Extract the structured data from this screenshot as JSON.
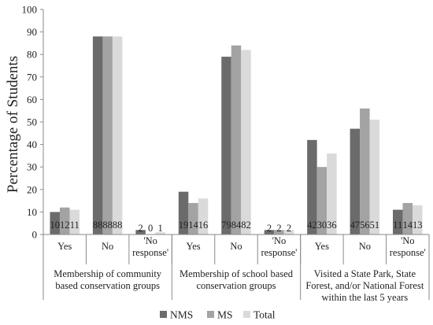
{
  "chart_data": {
    "type": "bar",
    "ylabel": "Percentage of Students",
    "ylim": [
      0,
      100
    ],
    "yticks": [
      0,
      10,
      20,
      30,
      40,
      50,
      60,
      70,
      80,
      90,
      100
    ],
    "grid": false,
    "legend_position": "bottom",
    "categories": [
      "Yes",
      "No",
      "'No response'",
      "Yes",
      "No",
      "'No response'",
      "Yes",
      "No",
      "'No response'"
    ],
    "category_lines": [
      [
        "Yes"
      ],
      [
        "No"
      ],
      [
        "'No",
        "response'"
      ],
      [
        "Yes"
      ],
      [
        "No"
      ],
      [
        "'No",
        "response'"
      ],
      [
        "Yes"
      ],
      [
        "No"
      ],
      [
        "'No",
        "response'"
      ]
    ],
    "groups": [
      {
        "lines": [
          "Membership of community",
          "based conservation groups"
        ],
        "categories": 3
      },
      {
        "lines": [
          "Membership of school based",
          "conservation groups"
        ],
        "categories": 3
      },
      {
        "lines": [
          "Visited a State Park, State",
          "Forest, and/or National Forest",
          "within the last 5 years"
        ],
        "categories": 3
      }
    ],
    "series": [
      {
        "name": "NMS",
        "color": "#6b6b6b",
        "values": [
          10,
          88,
          2,
          19,
          79,
          2,
          42,
          47,
          11
        ]
      },
      {
        "name": "MS",
        "color": "#a3a3a3",
        "values": [
          12,
          88,
          0,
          14,
          84,
          2,
          30,
          56,
          14
        ]
      },
      {
        "name": "Total",
        "color": "#dadada",
        "values": [
          11,
          88,
          1,
          16,
          82,
          2,
          36,
          51,
          13
        ]
      }
    ]
  }
}
